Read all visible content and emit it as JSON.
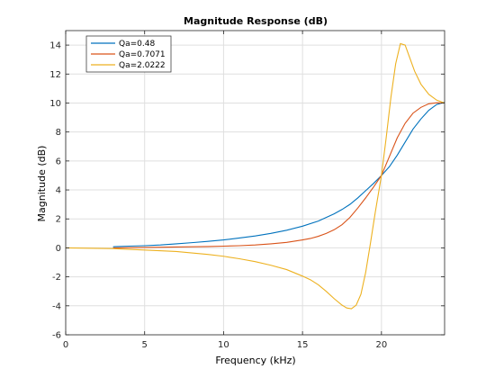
{
  "chart_data": {
    "type": "line",
    "title": "Magnitude Response (dB)",
    "xlabel": "Frequency (kHz)",
    "ylabel": "Magnitude (dB)",
    "xlim": [
      0,
      24
    ],
    "ylim": [
      -6,
      15
    ],
    "xticks": [
      0,
      5,
      10,
      15,
      20
    ],
    "yticks": [
      -6,
      -4,
      -2,
      0,
      2,
      4,
      6,
      8,
      10,
      12,
      14
    ],
    "grid": true,
    "legend_position": "top-left",
    "series": [
      {
        "name": "Qa=0.48",
        "color": "#0072bd",
        "x": [
          3,
          4,
          5,
          6,
          7,
          8,
          9,
          10,
          11,
          12,
          13,
          14,
          15,
          16,
          17,
          17.5,
          18,
          18.5,
          19,
          19.5,
          20,
          20.5,
          21,
          21.5,
          22,
          22.5,
          23,
          23.5,
          24
        ],
        "y": [
          0.08,
          0.12,
          0.15,
          0.2,
          0.28,
          0.36,
          0.45,
          0.55,
          0.68,
          0.82,
          1.0,
          1.22,
          1.5,
          1.85,
          2.35,
          2.65,
          3.0,
          3.45,
          3.95,
          4.45,
          5.0,
          5.6,
          6.4,
          7.3,
          8.2,
          8.9,
          9.5,
          9.9,
          10.05
        ]
      },
      {
        "name": "Qa=0.7071",
        "color": "#d95319",
        "x": [
          3,
          5,
          7,
          9,
          10,
          11,
          12,
          13,
          14,
          15,
          15.5,
          16,
          16.5,
          17,
          17.5,
          18,
          18.5,
          19,
          19.5,
          20,
          20.5,
          21,
          21.5,
          22,
          22.5,
          23,
          23.5,
          24
        ],
        "y": [
          0.0,
          0.03,
          0.06,
          0.09,
          0.12,
          0.15,
          0.2,
          0.28,
          0.38,
          0.55,
          0.65,
          0.8,
          1.0,
          1.25,
          1.6,
          2.1,
          2.75,
          3.45,
          4.2,
          5.0,
          6.3,
          7.6,
          8.6,
          9.3,
          9.7,
          9.95,
          10.02,
          10.0
        ]
      },
      {
        "name": "Qa=2.0222",
        "color": "#edb120",
        "x": [
          0,
          3,
          5,
          7,
          9,
          10,
          11,
          12,
          13,
          14,
          15,
          15.5,
          16,
          16.5,
          17,
          17.5,
          17.8,
          18.1,
          18.4,
          18.7,
          19,
          19.3,
          19.6,
          20,
          20.3,
          20.6,
          20.9,
          21.2,
          21.5,
          21.8,
          22.1,
          22.5,
          23,
          23.5,
          24
        ],
        "y": [
          0.0,
          -0.05,
          -0.15,
          -0.25,
          -0.45,
          -0.58,
          -0.75,
          -0.95,
          -1.2,
          -1.5,
          -1.95,
          -2.2,
          -2.55,
          -3.0,
          -3.5,
          -3.95,
          -4.15,
          -4.2,
          -3.95,
          -3.2,
          -1.7,
          0.3,
          2.4,
          5.0,
          7.6,
          10.4,
          12.7,
          14.1,
          14.0,
          13.1,
          12.2,
          11.3,
          10.6,
          10.2,
          10.0
        ]
      }
    ]
  }
}
